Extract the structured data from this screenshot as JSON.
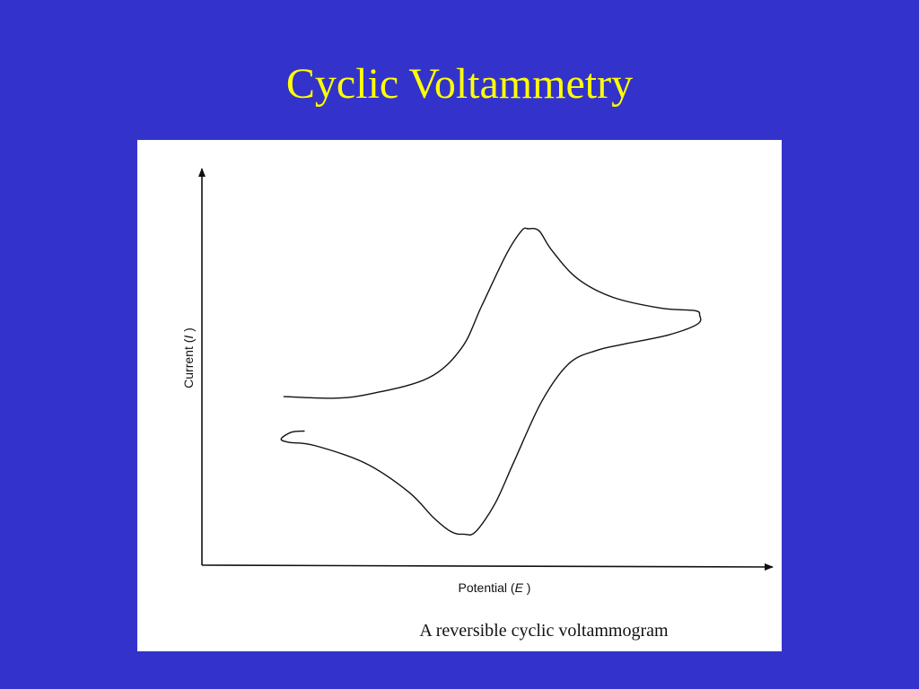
{
  "slide": {
    "title": "Cyclic Voltammetry",
    "background_color": "#3333cc",
    "title_color": "#ffff00"
  },
  "chart_data": {
    "type": "line",
    "title": "",
    "caption": "A reversible cyclic voltammogram",
    "xlabel_prefix": "Potential (",
    "xlabel_var": "E",
    "xlabel_suffix": " )",
    "ylabel_prefix": "Current (",
    "ylabel_var": "I",
    "ylabel_suffix": " )",
    "xlim": [
      0,
      100
    ],
    "ylim": [
      0,
      100
    ],
    "grid": false,
    "tick_labels": false,
    "series": [
      {
        "x": [
          14.6,
          23.7,
          30.3,
          40.3,
          46.2,
          49.8,
          54.1,
          56.9,
          58.1,
          60.0,
          62.2,
          66.8,
          73.2,
          81.8,
          87.7,
          88.6,
          88.2,
          83.0,
          75.3,
          70.2,
          65.3,
          60.5,
          55.6,
          52.2,
          48.7,
          46.6,
          44.4,
          41.2,
          36.8,
          29.1,
          20.0,
          15.5,
          14.1,
          15.9,
          18.2
        ],
        "y": [
          43.5,
          43.1,
          44.3,
          48.3,
          56.0,
          66.9,
          80.0,
          86.3,
          86.8,
          86.3,
          81.4,
          74.0,
          69.1,
          66.3,
          65.7,
          64.5,
          62.2,
          59.4,
          57.1,
          55.4,
          52.0,
          42.3,
          26.9,
          16.0,
          8.6,
          8.0,
          8.6,
          12.3,
          18.9,
          26.3,
          30.9,
          31.7,
          32.6,
          34.3,
          34.6
        ]
      }
    ]
  }
}
